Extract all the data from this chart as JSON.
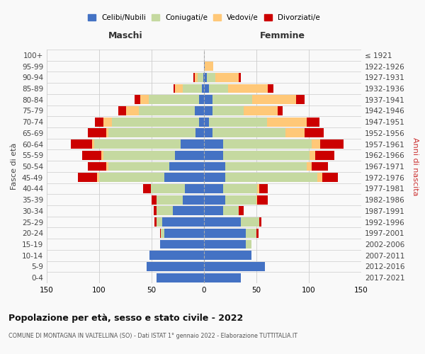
{
  "age_groups": [
    "0-4",
    "5-9",
    "10-14",
    "15-19",
    "20-24",
    "25-29",
    "30-34",
    "35-39",
    "40-44",
    "45-49",
    "50-54",
    "55-59",
    "60-64",
    "65-69",
    "70-74",
    "75-79",
    "80-84",
    "85-89",
    "90-94",
    "95-99",
    "100+"
  ],
  "birth_years": [
    "2017-2021",
    "2012-2016",
    "2007-2011",
    "2002-2006",
    "1997-2001",
    "1992-1996",
    "1987-1991",
    "1982-1986",
    "1977-1981",
    "1972-1976",
    "1967-1971",
    "1962-1966",
    "1957-1961",
    "1952-1956",
    "1947-1951",
    "1942-1946",
    "1937-1941",
    "1932-1936",
    "1927-1931",
    "1922-1926",
    "≤ 1921"
  ],
  "maschi": {
    "celibe": [
      45,
      55,
      52,
      42,
      38,
      40,
      30,
      20,
      18,
      38,
      33,
      28,
      22,
      8,
      5,
      9,
      5,
      2,
      1,
      0,
      0
    ],
    "coniugato": [
      0,
      0,
      0,
      0,
      3,
      5,
      15,
      25,
      33,
      62,
      58,
      68,
      83,
      83,
      83,
      53,
      48,
      18,
      5,
      0,
      0
    ],
    "vedovo": [
      0,
      0,
      0,
      0,
      0,
      0,
      0,
      0,
      0,
      2,
      2,
      2,
      2,
      2,
      8,
      12,
      8,
      8,
      3,
      0,
      0
    ],
    "divorziato": [
      0,
      0,
      0,
      0,
      1,
      2,
      3,
      5,
      7,
      18,
      18,
      18,
      20,
      18,
      8,
      8,
      5,
      1,
      1,
      0,
      0
    ]
  },
  "femmine": {
    "nubile": [
      35,
      58,
      45,
      40,
      40,
      35,
      18,
      20,
      18,
      20,
      20,
      18,
      18,
      8,
      5,
      8,
      8,
      5,
      3,
      1,
      0
    ],
    "coniugata": [
      0,
      0,
      0,
      5,
      10,
      18,
      15,
      30,
      33,
      88,
      78,
      83,
      85,
      70,
      55,
      30,
      38,
      18,
      8,
      0,
      0
    ],
    "vedova": [
      0,
      0,
      0,
      0,
      0,
      0,
      0,
      1,
      2,
      5,
      5,
      5,
      8,
      18,
      38,
      32,
      42,
      38,
      22,
      8,
      0
    ],
    "divorziata": [
      0,
      0,
      0,
      0,
      2,
      2,
      5,
      10,
      8,
      15,
      15,
      18,
      22,
      18,
      12,
      5,
      8,
      5,
      2,
      0,
      0
    ]
  },
  "colors": {
    "celibe": "#4472c4",
    "coniugato": "#c5d9a0",
    "vedovo": "#ffc878",
    "divorziato": "#cc0000"
  },
  "legend_labels": [
    "Celibi/Nubili",
    "Coniugati/e",
    "Vedovi/e",
    "Divorziati/e"
  ],
  "xlim": 150,
  "title": "Popolazione per età, sesso e stato civile - 2022",
  "subtitle": "COMUNE DI MONTAGNA IN VALTELLINA (SO) - Dati ISTAT 1° gennaio 2022 - Elaborazione TUTTITALIA.IT",
  "ylabel_left": "Fasce di età",
  "ylabel_right": "Anni di nascita",
  "xlabel_left": "Maschi",
  "xlabel_right": "Femmine",
  "bg_color": "#f9f9f9",
  "grid_color": "#cccccc"
}
